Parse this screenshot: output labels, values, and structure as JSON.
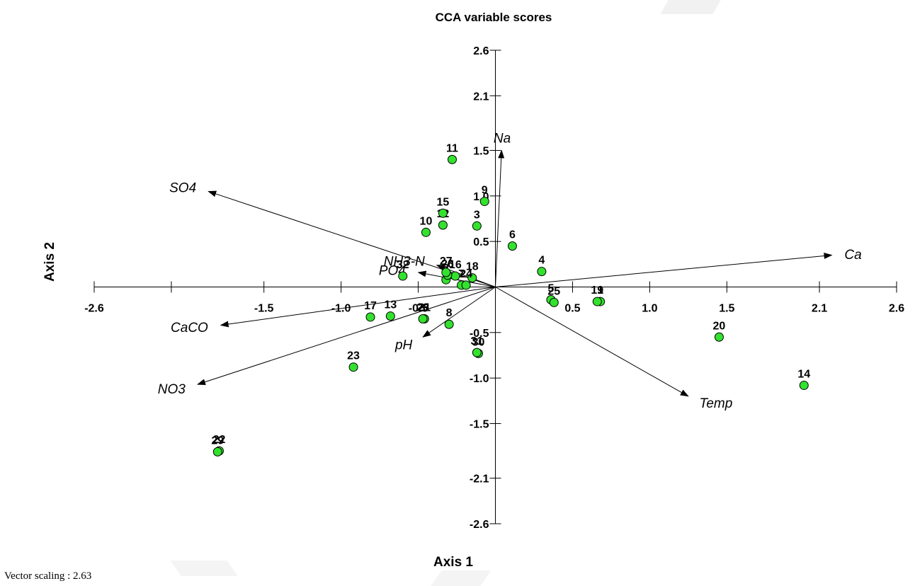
{
  "chart_data": {
    "type": "scatter",
    "title": "CCA variable scores",
    "xlabel": "Axis 1",
    "ylabel": "Axis 2",
    "xlim": [
      -2.6,
      2.6
    ],
    "ylim": [
      -2.6,
      2.6
    ],
    "x_ticks": [
      -2.6,
      -2.1,
      -1.5,
      -1.0,
      -0.5,
      0.5,
      1.0,
      1.5,
      2.1,
      2.6
    ],
    "y_ticks": [
      -2.6,
      -2.1,
      -1.5,
      -1.0,
      -0.5,
      0.5,
      1.0,
      1.5,
      2.1,
      2.6
    ],
    "x_tick_labels": [
      "-2.6",
      "",
      "-1.5",
      "-1.0",
      "-0.5",
      "0.5",
      "1.0",
      "1.5",
      "2.1",
      "2.6"
    ],
    "y_tick_labels": [
      "-2.6",
      "-2.1",
      "-1.5",
      "-1.0",
      "-0.5",
      "0.5",
      "1.0",
      "1.5",
      "2.1",
      "2.6"
    ],
    "point_color": "#33e12e",
    "points": [
      {
        "label": "1",
        "x": 0.68,
        "y": -0.16
      },
      {
        "label": "2",
        "x": -0.32,
        "y": 0.08
      },
      {
        "label": "3",
        "x": -0.12,
        "y": 0.67
      },
      {
        "label": "4",
        "x": 0.3,
        "y": 0.17
      },
      {
        "label": "5",
        "x": 0.36,
        "y": -0.14
      },
      {
        "label": "6",
        "x": 0.11,
        "y": 0.45
      },
      {
        "label": "7",
        "x": -0.22,
        "y": 0.02
      },
      {
        "label": "8",
        "x": -0.3,
        "y": -0.41
      },
      {
        "label": "9",
        "x": -0.07,
        "y": 0.94
      },
      {
        "label": "10",
        "x": -0.45,
        "y": 0.6
      },
      {
        "label": "11",
        "x": -0.28,
        "y": 1.4
      },
      {
        "label": "12",
        "x": -0.34,
        "y": 0.68
      },
      {
        "label": "13",
        "x": -0.68,
        "y": -0.32
      },
      {
        "label": "14",
        "x": 2.0,
        "y": -1.08
      },
      {
        "label": "15",
        "x": -0.34,
        "y": 0.81
      },
      {
        "label": "16",
        "x": -0.26,
        "y": 0.12
      },
      {
        "label": "17",
        "x": -0.81,
        "y": -0.33
      },
      {
        "label": "18",
        "x": -0.15,
        "y": 0.1
      },
      {
        "label": "19",
        "x": 0.66,
        "y": -0.16
      },
      {
        "label": "20",
        "x": 1.45,
        "y": -0.55
      },
      {
        "label": "21",
        "x": -0.46,
        "y": -0.35
      },
      {
        "label": "22",
        "x": -1.79,
        "y": -1.8
      },
      {
        "label": "23",
        "x": -0.92,
        "y": -0.88
      },
      {
        "label": "24",
        "x": -0.19,
        "y": 0.02
      },
      {
        "label": "25",
        "x": 0.38,
        "y": -0.17
      },
      {
        "label": "26",
        "x": -0.31,
        "y": 0.13
      },
      {
        "label": "27",
        "x": -0.32,
        "y": 0.16
      },
      {
        "label": "28",
        "x": -0.47,
        "y": -0.35
      },
      {
        "label": "29",
        "x": -1.8,
        "y": -1.81
      },
      {
        "label": "30",
        "x": -0.11,
        "y": -0.73
      },
      {
        "label": "31",
        "x": -0.12,
        "y": -0.72
      },
      {
        "label": "32",
        "x": -0.6,
        "y": 0.12
      }
    ],
    "vectors": [
      {
        "label": "Na",
        "x": 0.04,
        "y": 1.5
      },
      {
        "label": "SO4",
        "x": -1.86,
        "y": 1.05
      },
      {
        "label": "Ca",
        "x": 2.18,
        "y": 0.35
      },
      {
        "label": "NH3-N",
        "x": -0.38,
        "y": 0.24
      },
      {
        "label": "PO4",
        "x": -0.5,
        "y": 0.16
      },
      {
        "label": "CaCO",
        "x": -1.78,
        "y": -0.42
      },
      {
        "label": "NO3",
        "x": -1.93,
        "y": -1.07
      },
      {
        "label": "pH",
        "x": -0.47,
        "y": -0.55
      },
      {
        "label": "Temp",
        "x": 1.25,
        "y": -1.2
      }
    ]
  },
  "footnote": "Vector scaling : 2.63"
}
